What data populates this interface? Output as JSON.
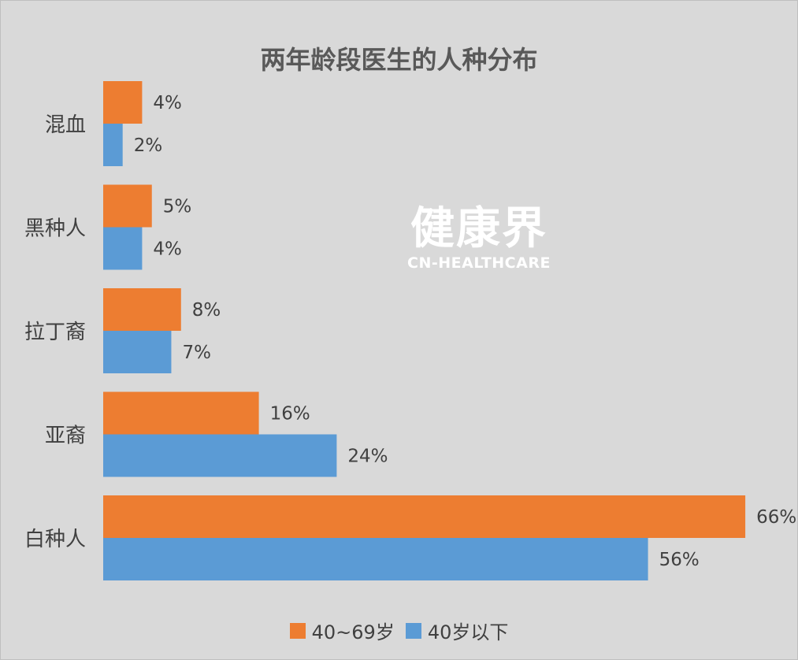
{
  "chart_data": {
    "type": "bar",
    "orientation": "horizontal",
    "title": "两年龄段医生的人种分布",
    "categories": [
      "混血",
      "黑种人",
      "拉丁裔",
      "亚裔",
      "白种人"
    ],
    "series": [
      {
        "name": "40~69岁",
        "color": "#ed7d31",
        "values": [
          4,
          5,
          8,
          16,
          66
        ],
        "labels": [
          "4%",
          "5%",
          "8%",
          "16%",
          "66%"
        ]
      },
      {
        "name": "40岁以下",
        "color": "#5b9bd5",
        "values": [
          2,
          4,
          7,
          24,
          56
        ],
        "labels": [
          "2%",
          "4%",
          "7%",
          "24%",
          "56%"
        ]
      }
    ],
    "value_unit": "%",
    "xlim": [
      0,
      67
    ],
    "grid": false,
    "legend_position": "bottom"
  },
  "watermark": {
    "text_cn": "健康界",
    "text_en": "CN-HEALTHCARE"
  }
}
